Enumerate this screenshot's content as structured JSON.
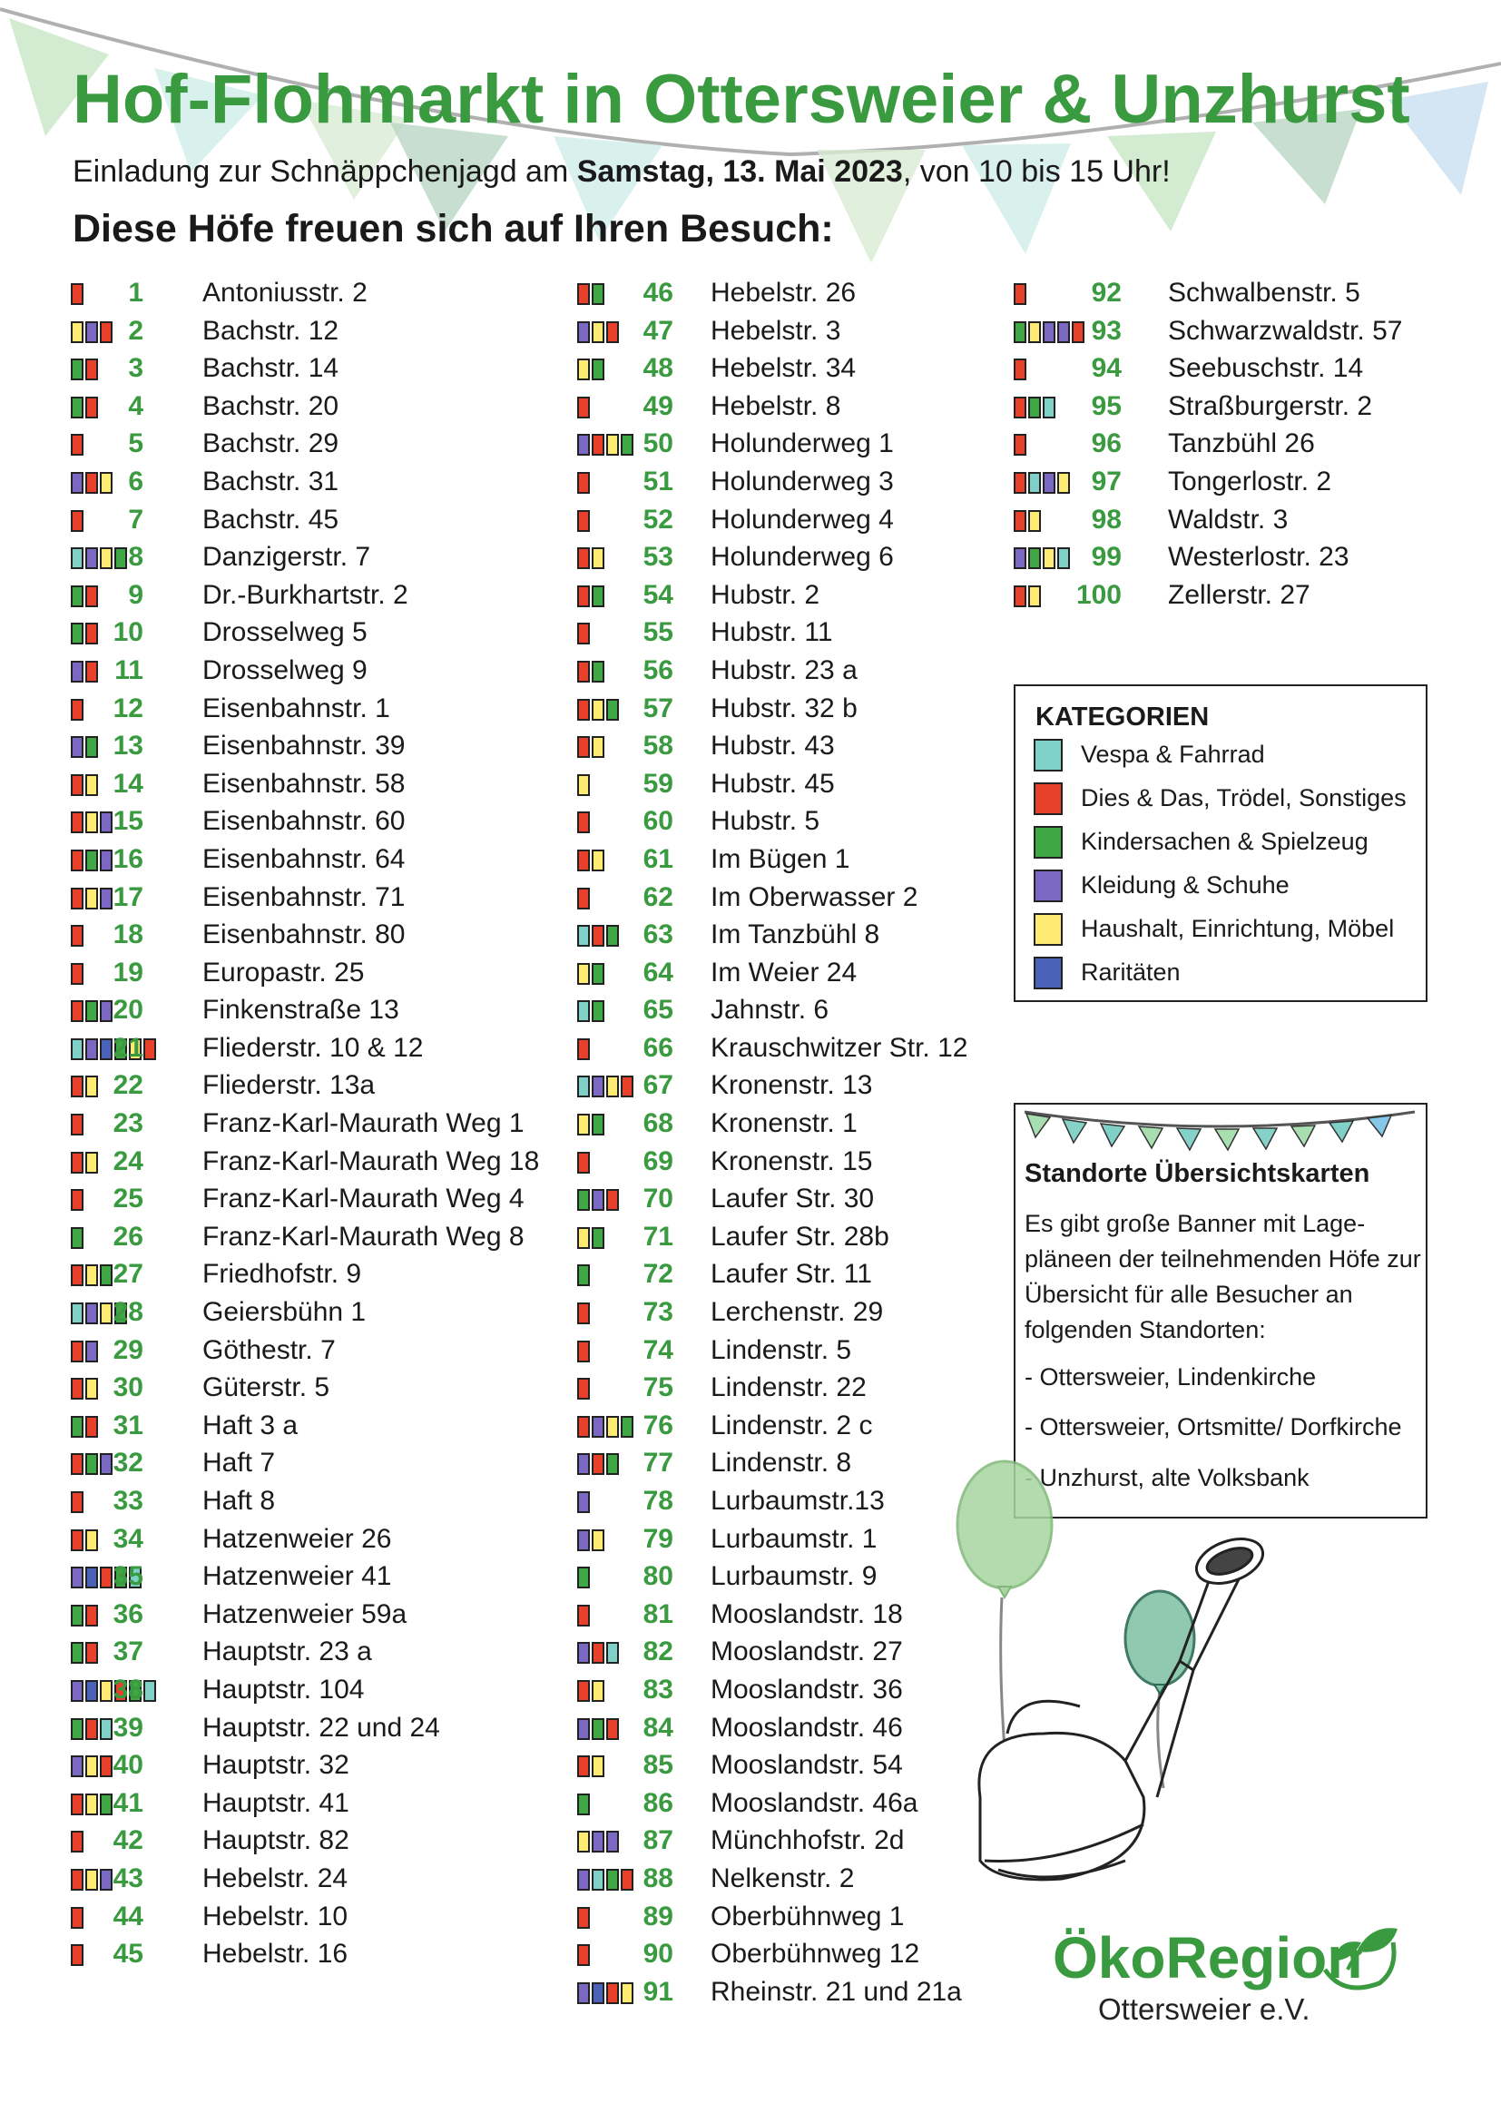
{
  "title": "Hof-Flohmarkt in Ottersweier & Unzhurst",
  "subtitle": {
    "prefix": "Einladung zur Schnäppchenjagd am ",
    "date": "Samstag, 13. Mai 2023",
    "suffix": ", von 10 bis 15 Uhr!"
  },
  "heading": "Diese Höfe freuen sich auf Ihren Besuch:",
  "colors": {
    "accent_green": "#3a9a3f",
    "C": "#7fd0c6",
    "R": "#e8412b",
    "G": "#3fa845",
    "P": "#7a68c2",
    "Y": "#fdeb74",
    "B": "#4a63b8"
  },
  "legend": {
    "title": "KATEGORIEN",
    "items": [
      {
        "color": "#7fd0c6",
        "label": "Vespa & Fahrrad"
      },
      {
        "color": "#e8412b",
        "label": "Dies & Das, Trödel, Sonstiges"
      },
      {
        "color": "#3fa845",
        "label": "Kindersachen & Spielzeug"
      },
      {
        "color": "#7a68c2",
        "label": "Kleidung & Schuhe"
      },
      {
        "color": "#fdeb74",
        "label": "Haushalt, Einrichtung, Möbel"
      },
      {
        "color": "#4a63b8",
        "label": "Raritäten"
      }
    ]
  },
  "info": {
    "title": "Standorte Übersichtskarten",
    "text": "Es gibt große Banner mit Lage-pläneen der teilnehmenden Höfe zur Übersicht für alle Besucher an folgenden Standorten:",
    "locations": [
      "- Ottersweier, Lindenkirche",
      "- Ottersweier, Ortsmitte/ Dorfkirche",
      "- Unzhurst, alte Volksbank"
    ]
  },
  "logo": {
    "name": "ÖkoRegion",
    "sub": "Ottersweier e.V."
  },
  "entries": [
    {
      "n": "1",
      "a": "Antoniusstr. 2",
      "c": "R"
    },
    {
      "n": "2",
      "a": "Bachstr. 12",
      "c": "YPR"
    },
    {
      "n": "3",
      "a": "Bachstr. 14",
      "c": "GR"
    },
    {
      "n": "4",
      "a": "Bachstr. 20",
      "c": "GR"
    },
    {
      "n": "5",
      "a": "Bachstr. 29",
      "c": "R"
    },
    {
      "n": "6",
      "a": "Bachstr. 31",
      "c": "PRY"
    },
    {
      "n": "7",
      "a": "Bachstr. 45",
      "c": "R"
    },
    {
      "n": "8",
      "a": "Danzigerstr. 7",
      "c": "CPYG"
    },
    {
      "n": "9",
      "a": "Dr.-Burkhartstr. 2",
      "c": "GR"
    },
    {
      "n": "10",
      "a": "Drosselweg 5",
      "c": "GR"
    },
    {
      "n": "11",
      "a": "Drosselweg 9",
      "c": "PR"
    },
    {
      "n": "12",
      "a": "Eisenbahnstr. 1",
      "c": "R"
    },
    {
      "n": "13",
      "a": "Eisenbahnstr. 39",
      "c": "PG"
    },
    {
      "n": "14",
      "a": "Eisenbahnstr. 58",
      "c": "RY"
    },
    {
      "n": "15",
      "a": "Eisenbahnstr. 60",
      "c": "RYP"
    },
    {
      "n": "16",
      "a": "Eisenbahnstr. 64",
      "c": "RGP"
    },
    {
      "n": "17",
      "a": "Eisenbahnstr. 71",
      "c": "RYP"
    },
    {
      "n": "18",
      "a": "Eisenbahnstr. 80",
      "c": "R"
    },
    {
      "n": "19",
      "a": "Europastr. 25",
      "c": "R"
    },
    {
      "n": "20",
      "a": "Finkenstraße 13",
      "c": "RGP"
    },
    {
      "n": "21",
      "a": "Fliederstr. 10 & 12",
      "c": "CPBGYR"
    },
    {
      "n": "22",
      "a": "Fliederstr. 13a",
      "c": "RY"
    },
    {
      "n": "23",
      "a": "Franz-Karl-Maurath Weg 1",
      "c": "R"
    },
    {
      "n": "24",
      "a": "Franz-Karl-Maurath Weg 18",
      "c": "RY"
    },
    {
      "n": "25",
      "a": "Franz-Karl-Maurath Weg 4",
      "c": "R"
    },
    {
      "n": "26",
      "a": "Franz-Karl-Maurath Weg 8",
      "c": "G"
    },
    {
      "n": "27",
      "a": "Friedhofstr. 9",
      "c": "RYG"
    },
    {
      "n": "28",
      "a": "Geiersbühn 1",
      "c": "CPYG"
    },
    {
      "n": "29",
      "a": "Göthestr. 7",
      "c": "RP"
    },
    {
      "n": "30",
      "a": "Güterstr. 5",
      "c": "RY"
    },
    {
      "n": "31",
      "a": "Haft 3 a",
      "c": "GR"
    },
    {
      "n": "32",
      "a": "Haft 7",
      "c": "RGP"
    },
    {
      "n": "33",
      "a": "Haft 8",
      "c": "R"
    },
    {
      "n": "34",
      "a": "Hatzenweier 26",
      "c": "RY"
    },
    {
      "n": "35",
      "a": "Hatzenweier 41",
      "c": "PBRGC"
    },
    {
      "n": "36",
      "a": "Hatzenweier 59a",
      "c": "GR"
    },
    {
      "n": "37",
      "a": "Hauptstr. 23 a",
      "c": "GR"
    },
    {
      "n": "38",
      "a": "Hauptstr. 104",
      "c": "PBYRGC"
    },
    {
      "n": "39",
      "a": "Hauptstr. 22 und 24",
      "c": "GRC"
    },
    {
      "n": "40",
      "a": "Hauptstr. 32",
      "c": "PYR"
    },
    {
      "n": "41",
      "a": "Hauptstr. 41",
      "c": "RYG"
    },
    {
      "n": "42",
      "a": "Hauptstr. 82",
      "c": "R"
    },
    {
      "n": "43",
      "a": "Hebelstr. 24",
      "c": "RYP"
    },
    {
      "n": "44",
      "a": "Hebelstr. 10",
      "c": "R"
    },
    {
      "n": "45",
      "a": "Hebelstr. 16",
      "c": "R"
    },
    {
      "n": "46",
      "a": "Hebelstr. 26",
      "c": "RG"
    },
    {
      "n": "47",
      "a": "Hebelstr. 3",
      "c": "PYR"
    },
    {
      "n": "48",
      "a": "Hebelstr. 34",
      "c": "YG"
    },
    {
      "n": "49",
      "a": "Hebelstr. 8",
      "c": "R"
    },
    {
      "n": "50",
      "a": "Holunderweg 1",
      "c": "PRYG"
    },
    {
      "n": "51",
      "a": "Holunderweg 3",
      "c": "R"
    },
    {
      "n": "52",
      "a": "Holunderweg 4",
      "c": "R"
    },
    {
      "n": "53",
      "a": "Holunderweg 6",
      "c": "RY"
    },
    {
      "n": "54",
      "a": "Hubstr. 2",
      "c": "RG"
    },
    {
      "n": "55",
      "a": "Hubstr. 11",
      "c": "R"
    },
    {
      "n": "56",
      "a": "Hubstr. 23 a",
      "c": "RG"
    },
    {
      "n": "57",
      "a": "Hubstr. 32 b",
      "c": "RYG"
    },
    {
      "n": "58",
      "a": "Hubstr. 43",
      "c": "RY"
    },
    {
      "n": "59",
      "a": "Hubstr. 45",
      "c": "Y"
    },
    {
      "n": "60",
      "a": "Hubstr. 5",
      "c": "R"
    },
    {
      "n": "61",
      "a": "Im Bügen 1",
      "c": "RY"
    },
    {
      "n": "62",
      "a": "Im Oberwasser 2",
      "c": "R"
    },
    {
      "n": "63",
      "a": "Im Tanzbühl 8",
      "c": "CRG"
    },
    {
      "n": "64",
      "a": "Im Weier 24",
      "c": "YG"
    },
    {
      "n": "65",
      "a": "Jahnstr. 6",
      "c": "CG"
    },
    {
      "n": "66",
      "a": "Krauschwitzer Str. 12",
      "c": "R"
    },
    {
      "n": "67",
      "a": "Kronenstr. 13",
      "c": "CPYR"
    },
    {
      "n": "68",
      "a": "Kronenstr. 1",
      "c": "YG"
    },
    {
      "n": "69",
      "a": "Kronenstr. 15",
      "c": "R"
    },
    {
      "n": "70",
      "a": "Laufer Str. 30",
      "c": "GPR"
    },
    {
      "n": "71",
      "a": "Laufer Str. 28b",
      "c": "YG"
    },
    {
      "n": "72",
      "a": "Laufer Str. 11",
      "c": "G"
    },
    {
      "n": "73",
      "a": "Lerchenstr. 29",
      "c": "R"
    },
    {
      "n": "74",
      "a": "Lindenstr. 5",
      "c": "R"
    },
    {
      "n": "75",
      "a": "Lindenstr. 22",
      "c": "R"
    },
    {
      "n": "76",
      "a": "Lindenstr. 2 c",
      "c": "RPYG"
    },
    {
      "n": "77",
      "a": "Lindenstr. 8",
      "c": "PRG"
    },
    {
      "n": "78",
      "a": "Lurbaumstr.13",
      "c": "P"
    },
    {
      "n": "79",
      "a": "Lurbaumstr. 1",
      "c": "PY"
    },
    {
      "n": "80",
      "a": "Lurbaumstr. 9",
      "c": "G"
    },
    {
      "n": "81",
      "a": "Mooslandstr. 18",
      "c": "R"
    },
    {
      "n": "82",
      "a": "Mooslandstr. 27",
      "c": "PRC"
    },
    {
      "n": "83",
      "a": "Mooslandstr. 36",
      "c": "RY"
    },
    {
      "n": "84",
      "a": "Mooslandstr. 46",
      "c": "PGR"
    },
    {
      "n": "85",
      "a": "Mooslandstr. 54",
      "c": "RY"
    },
    {
      "n": "86",
      "a": "Mooslandstr. 46a",
      "c": "G"
    },
    {
      "n": "87",
      "a": "Münchhofstr. 2d",
      "c": "YPP"
    },
    {
      "n": "88",
      "a": "Nelkenstr. 2",
      "c": "PCGR"
    },
    {
      "n": "89",
      "a": "Oberbühnweg 1",
      "c": "R"
    },
    {
      "n": "90",
      "a": "Oberbühnweg 12",
      "c": "R"
    },
    {
      "n": "91",
      "a": "Rheinstr. 21 und 21a",
      "c": "PBRY"
    },
    {
      "n": "92",
      "a": "Schwalbenstr. 5",
      "c": "R"
    },
    {
      "n": "93",
      "a": "Schwarzwaldstr. 57",
      "c": "GYPPR"
    },
    {
      "n": "94",
      "a": "Seebuschstr. 14",
      "c": "R"
    },
    {
      "n": "95",
      "a": "Straßburgerstr. 2",
      "c": "RGC"
    },
    {
      "n": "96",
      "a": "Tanzbühl 26",
      "c": "R"
    },
    {
      "n": "97",
      "a": "Tongerlostr. 2",
      "c": "RCPY"
    },
    {
      "n": "98",
      "a": "Waldstr. 3",
      "c": "RY"
    },
    {
      "n": "99",
      "a": "Westerlostr. 23",
      "c": "PGYC"
    },
    {
      "n": "100",
      "a": "Zellerstr. 27",
      "c": "RY"
    }
  ]
}
